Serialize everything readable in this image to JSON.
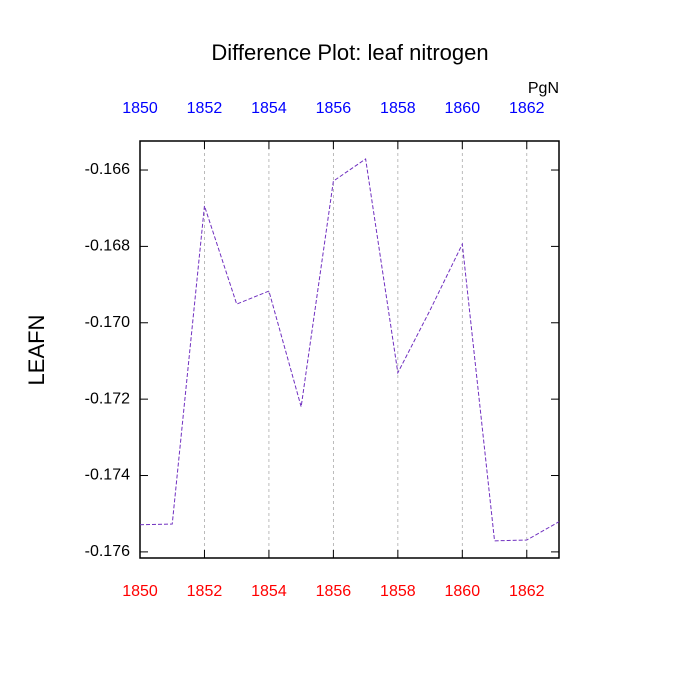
{
  "chart_data": {
    "type": "line",
    "title": "Difference Plot: leaf nitrogen",
    "ylabel": "LEAFN",
    "units": "PgN",
    "x": [
      1850,
      1851,
      1852,
      1853,
      1854,
      1855,
      1856,
      1857,
      1858,
      1859,
      1860,
      1861,
      1862,
      1863
    ],
    "series": [
      {
        "color": "#7030c0",
        "values": [
          -0.17529,
          -0.17527,
          -0.16694,
          -0.16951,
          -0.16917,
          -0.1722,
          -0.16629,
          -0.16571,
          -0.17131,
          -0.16967,
          -0.16794,
          -0.17571,
          -0.17569,
          -0.17521
        ]
      }
    ],
    "xlim": [
      1850,
      1863
    ],
    "xticks": [
      1850,
      1852,
      1854,
      1856,
      1858,
      1860,
      1862
    ],
    "ylim": [
      -0.17616,
      -0.16524
    ],
    "yticks": [
      {
        "value": -0.176,
        "label": "-0.176"
      },
      {
        "value": -0.174,
        "label": "-0.174"
      },
      {
        "value": -0.172,
        "label": "-0.172"
      },
      {
        "value": -0.17,
        "label": "-0.170"
      },
      {
        "value": -0.168,
        "label": "-0.168"
      },
      {
        "value": -0.166,
        "label": "-0.166"
      }
    ],
    "grid": true,
    "bottom_axis_color": "#ff0000",
    "top_axis_color": "#0000ff"
  }
}
